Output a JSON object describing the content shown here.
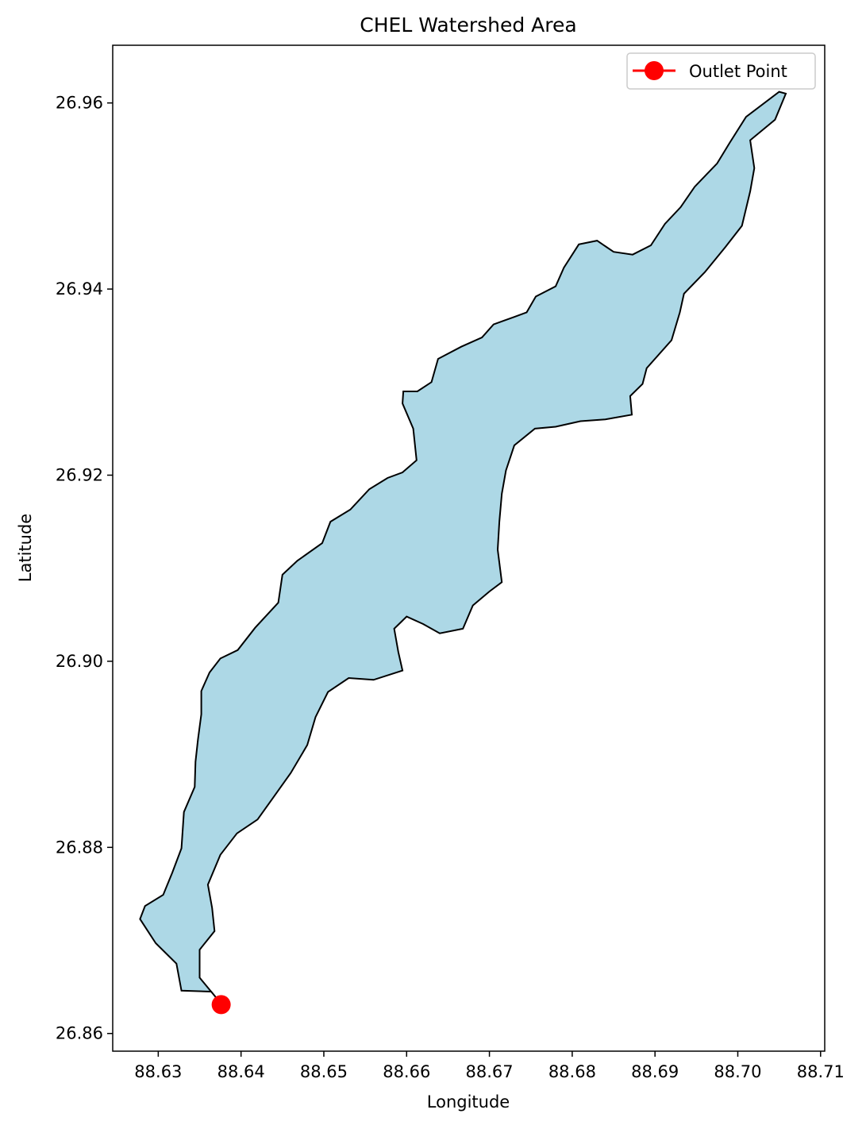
{
  "chart_data": {
    "type": "map",
    "title": "CHEL Watershed Area",
    "xlabel": "Longitude",
    "ylabel": "Latitude",
    "xlim": [
      88.6245,
      88.7105
    ],
    "ylim": [
      26.8581,
      26.9662
    ],
    "x_ticks": [
      88.63,
      88.64,
      88.65,
      88.66,
      88.67,
      88.68,
      88.69,
      88.7,
      88.71
    ],
    "x_tick_labels": [
      "88.63",
      "88.64",
      "88.65",
      "88.66",
      "88.67",
      "88.68",
      "88.69",
      "88.70",
      "88.71"
    ],
    "y_ticks": [
      26.86,
      26.88,
      26.9,
      26.92,
      26.94,
      26.96
    ],
    "y_tick_labels": [
      "26.86",
      "26.88",
      "26.90",
      "26.92",
      "26.94",
      "26.96"
    ],
    "grid": false,
    "legend_position": "upper right",
    "watershed": {
      "fill": "#add8e6",
      "edge": "#000000",
      "boundary": [
        [
          88.6376,
          26.8632
        ],
        [
          88.6364,
          26.8645
        ],
        [
          88.6328,
          26.8646
        ],
        [
          88.6322,
          26.8675
        ],
        [
          88.6297,
          26.8697
        ],
        [
          88.6278,
          26.8723
        ],
        [
          88.6284,
          26.8737
        ],
        [
          88.6306,
          26.8749
        ],
        [
          88.6317,
          26.8773
        ],
        [
          88.6328,
          26.8799
        ],
        [
          88.6331,
          26.8838
        ],
        [
          88.6344,
          26.8865
        ],
        [
          88.6345,
          26.8892
        ],
        [
          88.6348,
          26.8916
        ],
        [
          88.6352,
          26.8943
        ],
        [
          88.6352,
          26.8968
        ],
        [
          88.6362,
          26.8988
        ],
        [
          88.6375,
          26.9003
        ],
        [
          88.6396,
          26.9012
        ],
        [
          88.6417,
          26.9036
        ],
        [
          88.6445,
          26.9063
        ],
        [
          88.645,
          26.9093
        ],
        [
          88.6468,
          26.9108
        ],
        [
          88.6498,
          26.9127
        ],
        [
          88.6508,
          26.915
        ],
        [
          88.6532,
          26.9163
        ],
        [
          88.6555,
          26.9185
        ],
        [
          88.6577,
          26.9197
        ],
        [
          88.6595,
          26.9203
        ],
        [
          88.6612,
          26.9216
        ],
        [
          88.6608,
          26.925
        ],
        [
          88.6595,
          26.9277
        ],
        [
          88.6596,
          26.929
        ],
        [
          88.6613,
          26.929
        ],
        [
          88.663,
          26.93
        ],
        [
          88.6638,
          26.9325
        ],
        [
          88.6666,
          26.9338
        ],
        [
          88.6691,
          26.9348
        ],
        [
          88.6705,
          26.9362
        ],
        [
          88.673,
          26.937
        ],
        [
          88.6745,
          26.9375
        ],
        [
          88.6756,
          26.9392
        ],
        [
          88.678,
          26.9403
        ],
        [
          88.679,
          26.9423
        ],
        [
          88.6808,
          26.9448
        ],
        [
          88.683,
          26.9452
        ],
        [
          88.685,
          26.944
        ],
        [
          88.6873,
          26.9437
        ],
        [
          88.6895,
          26.9447
        ],
        [
          88.6912,
          26.947
        ],
        [
          88.6931,
          26.9488
        ],
        [
          88.6948,
          26.951
        ],
        [
          88.6975,
          26.9535
        ],
        [
          88.699,
          26.9557
        ],
        [
          88.701,
          26.9585
        ],
        [
          88.705,
          26.9612
        ],
        [
          88.7058,
          26.961
        ],
        [
          88.7045,
          26.9582
        ],
        [
          88.7015,
          26.956
        ],
        [
          88.702,
          26.953
        ],
        [
          88.7015,
          26.9505
        ],
        [
          88.7005,
          26.9468
        ],
        [
          88.6985,
          26.9445
        ],
        [
          88.696,
          26.9418
        ],
        [
          88.6935,
          26.9395
        ],
        [
          88.693,
          26.9375
        ],
        [
          88.692,
          26.9345
        ],
        [
          88.689,
          26.9315
        ],
        [
          88.6885,
          26.9298
        ],
        [
          88.687,
          26.9285
        ],
        [
          88.6872,
          26.9265
        ],
        [
          88.684,
          26.926
        ],
        [
          88.681,
          26.9258
        ],
        [
          88.678,
          26.9252
        ],
        [
          88.6755,
          26.925
        ],
        [
          88.673,
          26.9232
        ],
        [
          88.672,
          26.9205
        ],
        [
          88.6715,
          26.918
        ],
        [
          88.6712,
          26.915
        ],
        [
          88.671,
          26.912
        ],
        [
          88.6715,
          26.9085
        ],
        [
          88.67,
          26.9075
        ],
        [
          88.668,
          26.906
        ],
        [
          88.6668,
          26.9035
        ],
        [
          88.664,
          26.903
        ],
        [
          88.662,
          26.904
        ],
        [
          88.66,
          26.9048
        ],
        [
          88.6585,
          26.9035
        ],
        [
          88.659,
          26.901
        ],
        [
          88.6595,
          26.899
        ],
        [
          88.656,
          26.898
        ],
        [
          88.653,
          26.8982
        ],
        [
          88.6505,
          26.8967
        ],
        [
          88.649,
          26.894
        ],
        [
          88.648,
          26.891
        ],
        [
          88.646,
          26.888
        ],
        [
          88.644,
          26.8855
        ],
        [
          88.642,
          26.883
        ],
        [
          88.6395,
          26.8815
        ],
        [
          88.6375,
          26.8792
        ],
        [
          88.636,
          26.876
        ],
        [
          88.6365,
          26.8735
        ],
        [
          88.6368,
          26.871
        ],
        [
          88.635,
          26.869
        ],
        [
          88.635,
          26.866
        ],
        [
          88.6376,
          26.8632
        ]
      ]
    },
    "series": [
      {
        "name": "Outlet Point",
        "type": "point",
        "x": 88.6376,
        "y": 26.8631,
        "color": "#ff0000",
        "marker": "circle"
      }
    ]
  }
}
